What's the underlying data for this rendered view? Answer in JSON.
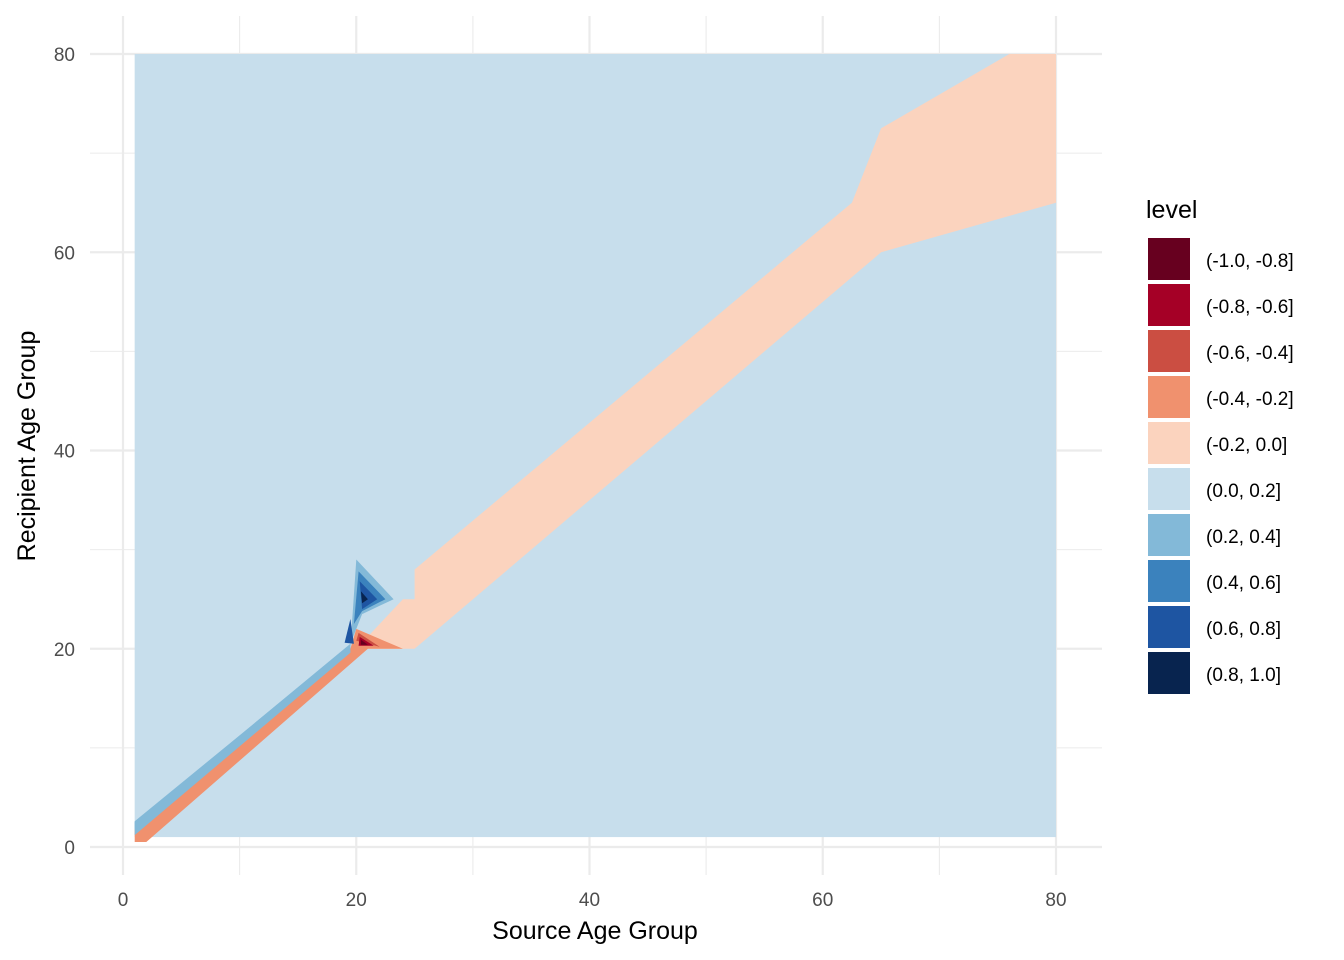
{
  "chart_data": {
    "type": "contour",
    "xlabel": "Source Age Group",
    "ylabel": "Recipient Age Group",
    "xlim": [
      0,
      80
    ],
    "ylim": [
      0,
      80
    ],
    "x_ticks": [
      "0",
      "20",
      "40",
      "60",
      "80"
    ],
    "y_ticks": [
      "0",
      "20",
      "40",
      "60",
      "80"
    ],
    "grid": true,
    "background_level": "(0.0, 0.2]",
    "data_extent": {
      "x": [
        1,
        80
      ],
      "y": [
        1,
        80
      ]
    },
    "legend": {
      "title": "level",
      "position": "right",
      "levels": [
        {
          "label": "(-1.0, -0.8]",
          "color": "#67001F"
        },
        {
          "label": "(-0.8, -0.6]",
          "color": "#A50026"
        },
        {
          "label": "(-0.6, -0.4]",
          "color": "#CB4E42"
        },
        {
          "label": "(-0.4, -0.2]",
          "color": "#F0916E"
        },
        {
          "label": "(-0.2, 0.0]",
          "color": "#FBD3BE"
        },
        {
          "label": "(0.0, 0.2]",
          "color": "#C7DEEC"
        },
        {
          "label": "(0.2, 0.4]",
          "color": "#83B9D8"
        },
        {
          "label": "(0.4, 0.6]",
          "color": "#3B82BD"
        },
        {
          "label": "(0.6, 0.8]",
          "color": "#1E55A2"
        },
        {
          "label": "(0.8, 1.0]",
          "color": "#08244F"
        }
      ]
    },
    "regions": [
      {
        "level": "(-0.2, 0.0]",
        "points": [
          [
            20,
            20
          ],
          [
            24,
            25
          ],
          [
            25,
            25
          ],
          [
            25,
            28
          ],
          [
            62.5,
            65
          ],
          [
            65,
            72.5
          ],
          [
            76,
            80
          ],
          [
            80,
            80
          ],
          [
            80,
            65
          ],
          [
            65,
            60
          ],
          [
            25,
            20
          ],
          [
            20,
            20
          ]
        ]
      },
      {
        "level": "(-0.2, 0.0]",
        "points": [
          [
            20,
            20
          ],
          [
            20,
            22
          ],
          [
            24,
            20
          ]
        ]
      },
      {
        "level": "(-0.4, -0.2]",
        "points": [
          [
            1,
            0.5
          ],
          [
            2,
            0.5
          ],
          [
            21,
            20
          ],
          [
            24,
            20
          ],
          [
            20,
            22
          ],
          [
            19.5,
            20
          ],
          [
            1,
            1.8
          ]
        ]
      },
      {
        "level": "(-0.6, -0.4]",
        "points": [
          [
            20,
            20.8
          ],
          [
            22,
            20.2
          ],
          [
            20.2,
            21.6
          ]
        ]
      },
      {
        "level": "(-0.8, -0.6]",
        "points": [
          [
            20.2,
            20.3
          ],
          [
            21.5,
            20.3
          ],
          [
            20.3,
            21.2
          ]
        ]
      },
      {
        "level": "(-1.0, -0.8]",
        "points": [
          [
            20.4,
            20.4
          ],
          [
            21,
            20.4
          ],
          [
            20.4,
            20.9
          ]
        ]
      },
      {
        "level": "(0.2, 0.4]",
        "points": [
          [
            1,
            1.8
          ],
          [
            19.5,
            20.2
          ],
          [
            20,
            29
          ],
          [
            23.2,
            25
          ],
          [
            20.5,
            23.5
          ],
          [
            20,
            22
          ],
          [
            19.5,
            20.5
          ],
          [
            1,
            2.5
          ]
        ]
      },
      {
        "level": "(0.2, 0.4]",
        "points": [
          [
            1,
            1.2
          ],
          [
            19.5,
            19.6
          ],
          [
            19.5,
            20.4
          ],
          [
            1,
            2.6
          ]
        ]
      },
      {
        "level": "(0.4, 0.6]",
        "points": [
          [
            20.2,
            27.8
          ],
          [
            22.5,
            25
          ],
          [
            20.5,
            23.8
          ],
          [
            19.8,
            22.5
          ]
        ]
      },
      {
        "level": "(0.6, 0.8]",
        "points": [
          [
            20.3,
            26.8
          ],
          [
            21.8,
            25
          ],
          [
            20.5,
            24
          ]
        ]
      },
      {
        "level": "(0.8, 1.0]",
        "points": [
          [
            20.4,
            25.8
          ],
          [
            21,
            25
          ],
          [
            20.5,
            24.6
          ]
        ]
      },
      {
        "level": "(0.6, 0.8]",
        "points": [
          [
            19,
            20.6
          ],
          [
            19.5,
            23
          ],
          [
            19.8,
            20.5
          ]
        ]
      }
    ]
  }
}
